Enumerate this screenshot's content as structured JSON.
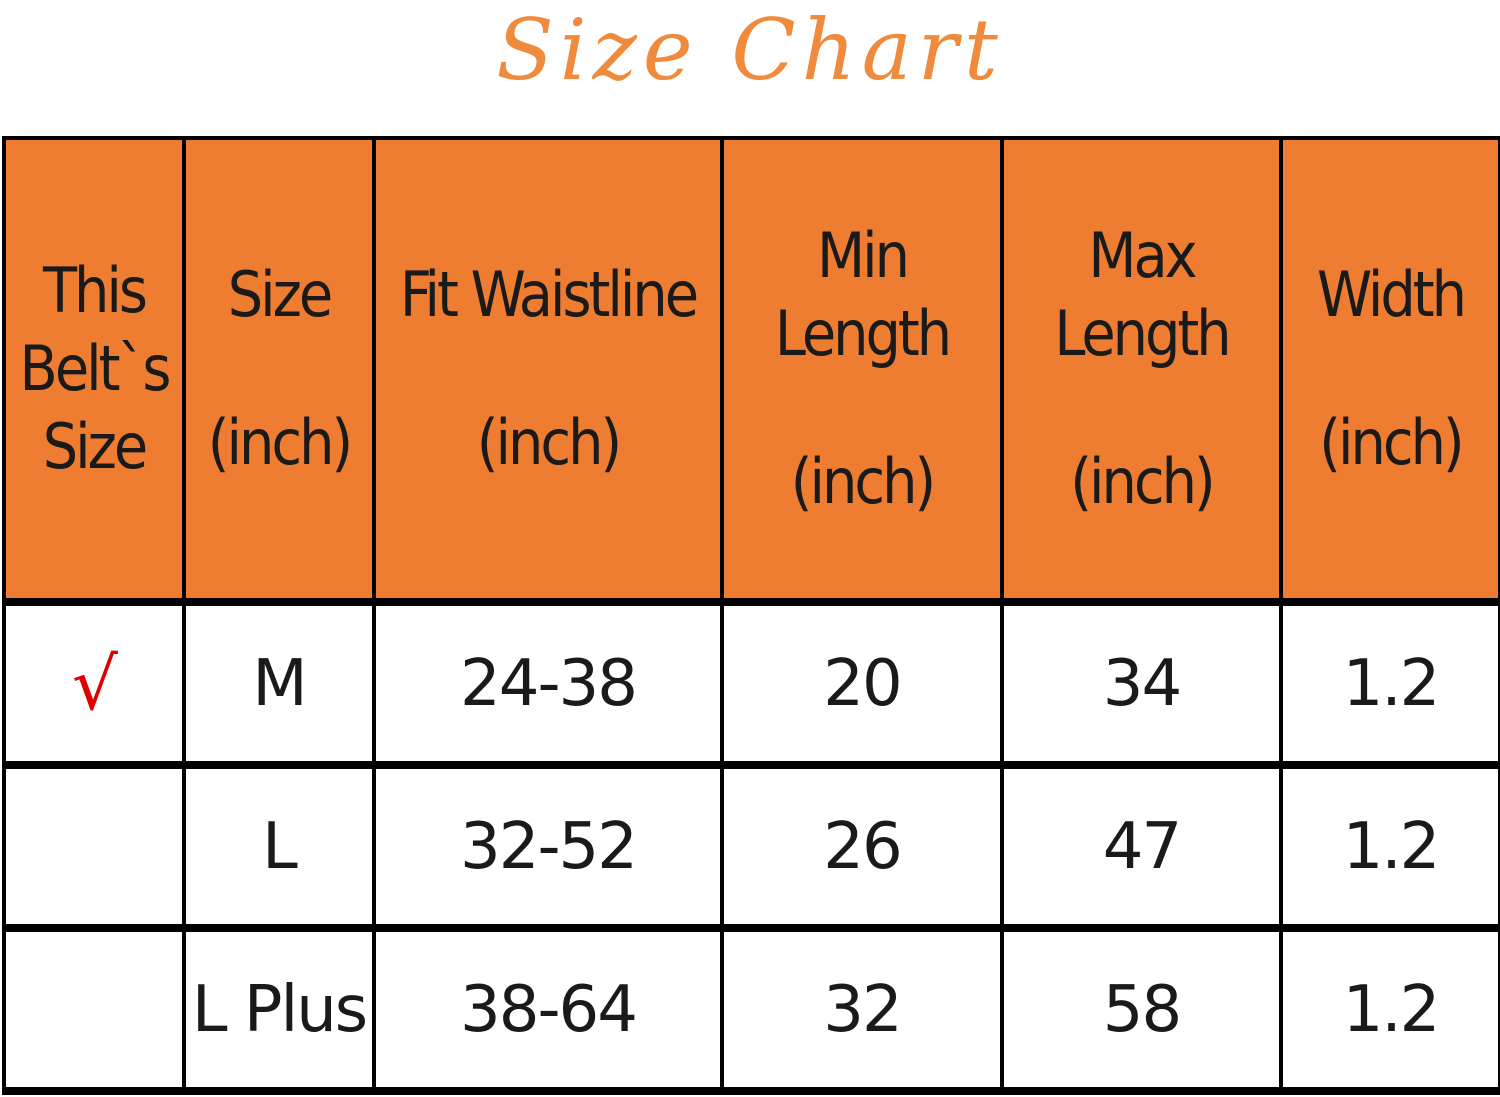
{
  "title": "Size Chart",
  "colors": {
    "header_bg": "#ee7d32",
    "title": "#f08a3c",
    "check": "#e00000"
  },
  "headers": [
    {
      "line1": "This",
      "line2": "Belt`s",
      "line3": "Size"
    },
    {
      "line1": "Size",
      "line2": "(inch)"
    },
    {
      "line1": "Fit Waistline",
      "line2": "(inch)"
    },
    {
      "line1": "Min Length",
      "line2": "(inch)"
    },
    {
      "line1": "Max Length",
      "line2": "(inch)"
    },
    {
      "line1": "Width",
      "line2": "(inch)"
    }
  ],
  "rows": [
    {
      "mark": "√",
      "size": "M",
      "waist": "24-38",
      "min": "20",
      "max": "34",
      "width": "1.2"
    },
    {
      "mark": "",
      "size": "L",
      "waist": "32-52",
      "min": "26",
      "max": "47",
      "width": "1.2"
    },
    {
      "mark": "",
      "size": "L Plus",
      "waist": "38-64",
      "min": "32",
      "max": "58",
      "width": "1.2"
    }
  ]
}
